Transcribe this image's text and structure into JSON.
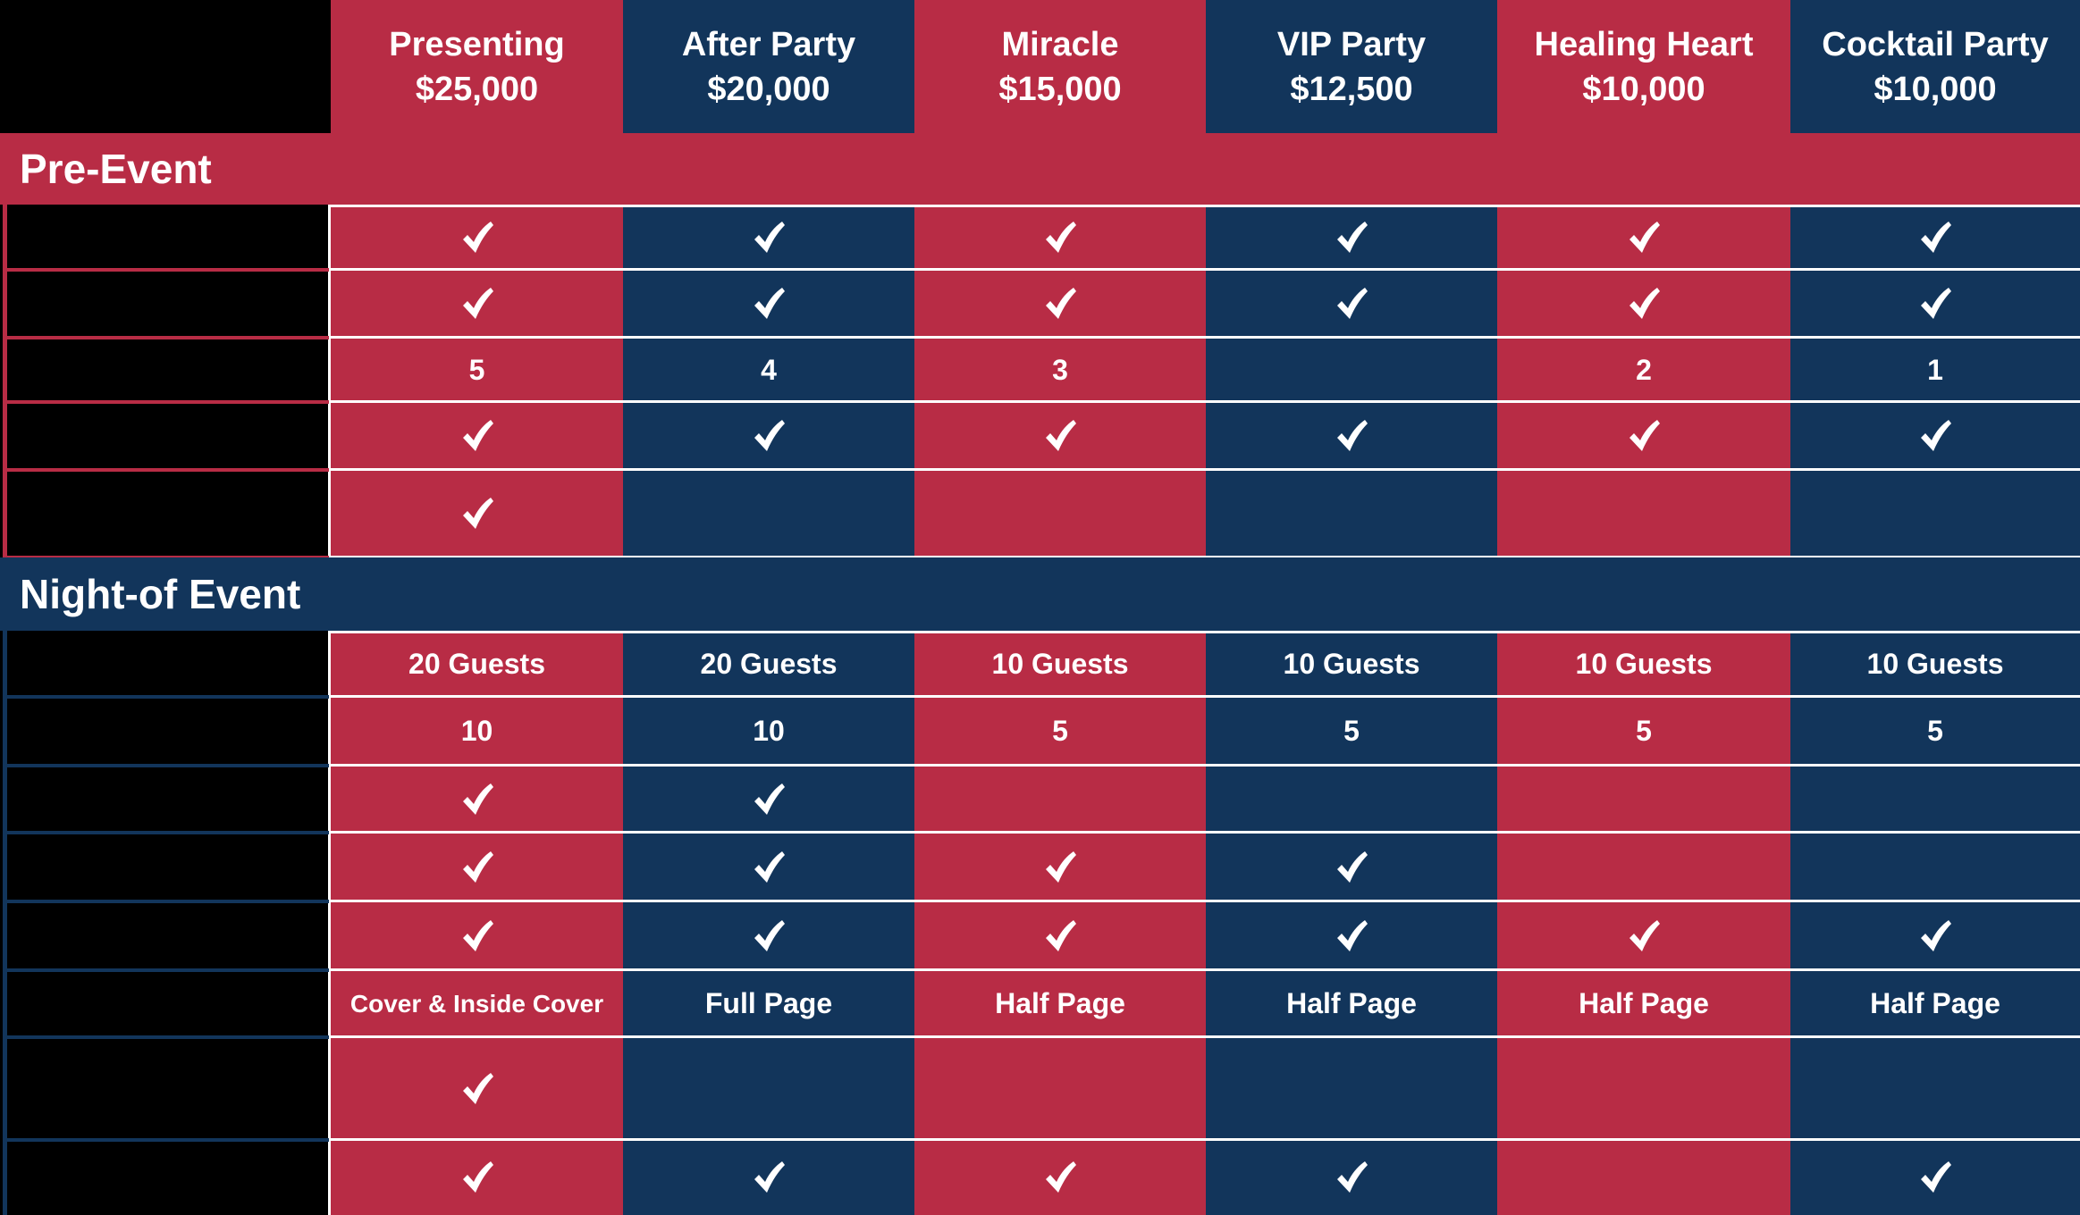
{
  "colors": {
    "red": "#b82c45",
    "navy": "#12355b",
    "black": "#000000",
    "white": "#ffffff"
  },
  "tiers": [
    {
      "name": "Presenting",
      "price": "$25,000",
      "color": "red"
    },
    {
      "name": "After Party",
      "price": "$20,000",
      "color": "navy"
    },
    {
      "name": "Miracle",
      "price": "$15,000",
      "color": "red"
    },
    {
      "name": "VIP Party",
      "price": "$12,500",
      "color": "navy"
    },
    {
      "name": "Healing Heart",
      "price": "$10,000",
      "color": "red"
    },
    {
      "name": "Cocktail Party",
      "price": "$10,000",
      "color": "navy"
    }
  ],
  "sections": [
    {
      "title": "Pre-Event",
      "color": "red",
      "rows": [
        [
          "check",
          "check",
          "check",
          "check",
          "check",
          "check"
        ],
        [
          "check",
          "check",
          "check",
          "check",
          "check",
          "check"
        ],
        [
          "5",
          "4",
          "3",
          "",
          "2",
          "1"
        ],
        [
          "check",
          "check",
          "check",
          "check",
          "check",
          "check"
        ],
        [
          "check",
          "",
          "",
          "",
          "",
          ""
        ]
      ]
    },
    {
      "title": "Night-of Event",
      "color": "navy",
      "rows": [
        [
          "20 Guests",
          "20 Guests",
          "10 Guests",
          "10 Guests",
          "10 Guests",
          "10 Guests"
        ],
        [
          "10",
          "10",
          "5",
          "5",
          "5",
          "5"
        ],
        [
          "check",
          "check",
          "",
          "",
          "",
          ""
        ],
        [
          "check",
          "check",
          "check",
          "check",
          "",
          ""
        ],
        [
          "check",
          "check",
          "check",
          "check",
          "check",
          "check"
        ],
        [
          "Cover & Inside Cover",
          "Full Page",
          "Half Page",
          "Half Page",
          "Half Page",
          "Half Page"
        ],
        [
          "check",
          "",
          "",
          "",
          "",
          ""
        ],
        [
          "check",
          "check",
          "check",
          "check",
          "",
          "check"
        ]
      ]
    }
  ],
  "icons": {
    "check": "checkmark-icon"
  }
}
